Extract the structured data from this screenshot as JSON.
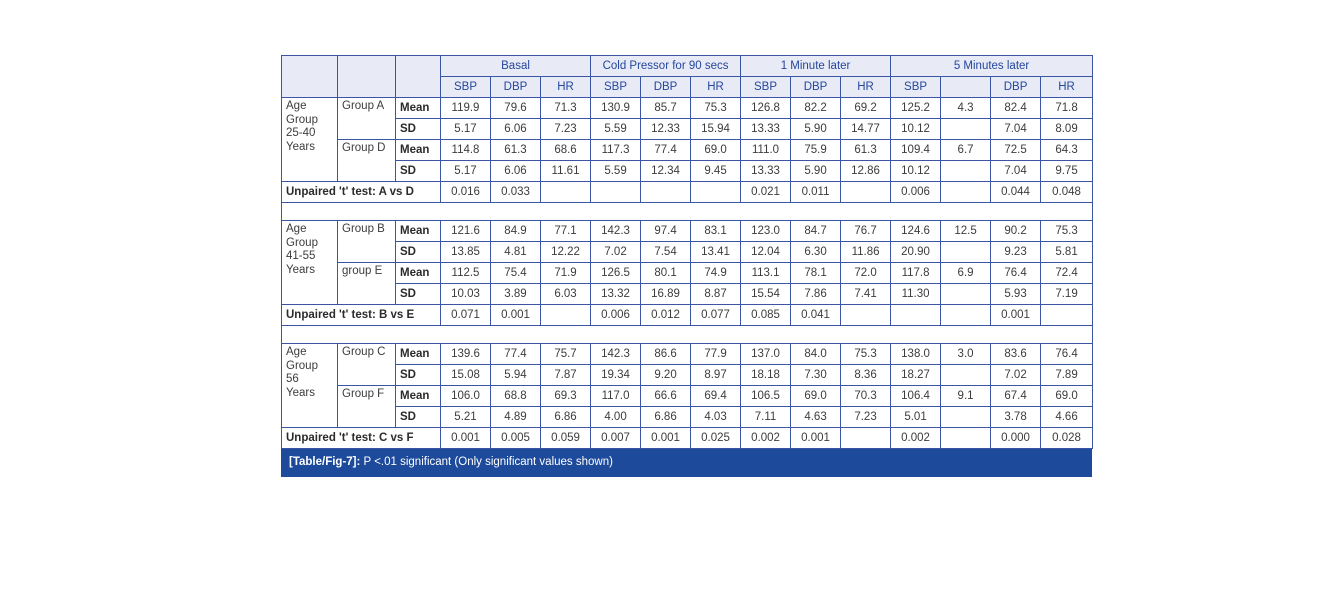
{
  "colors": {
    "header_bg": "#e8eaf6",
    "header_text": "#24479c",
    "border": "#3a55a3",
    "caption_bg": "#1d4a9b",
    "caption_text": "#ffffff",
    "data_text": "#3c3c3c"
  },
  "table": {
    "column_groups": [
      {
        "label": "Basal",
        "span": 3
      },
      {
        "label": "Cold Pressor for 90 secs",
        "span": 3
      },
      {
        "label": "1 Minute later",
        "span": 3
      },
      {
        "label": "5 Minutes later",
        "span": 4
      }
    ],
    "sub_headers": [
      "SBP",
      "DBP",
      "HR",
      "SBP",
      "DBP",
      "HR",
      "SBP",
      "DBP",
      "HR",
      "SBP",
      "",
      "DBP",
      "HR"
    ],
    "stat_labels": {
      "mean": "Mean",
      "sd": "SD"
    },
    "sections": [
      {
        "age_group": "Age\nGroup\n25-40\nYears",
        "groups": [
          {
            "name": "Group A",
            "mean": [
              "119.9",
              "79.6",
              "71.3",
              "130.9",
              "85.7",
              "75.3",
              "126.8",
              "82.2",
              "69.2",
              "125.2",
              "4.3",
              "82.4",
              "71.8"
            ],
            "sd": [
              "5.17",
              "6.06",
              "7.23",
              "5.59",
              "12.33",
              "15.94",
              "13.33",
              "5.90",
              "14.77",
              "10.12",
              "",
              "7.04",
              "8.09"
            ]
          },
          {
            "name": "Group D",
            "mean": [
              "114.8",
              "61.3",
              "68.6",
              "117.3",
              "77.4",
              "69.0",
              "111.0",
              "75.9",
              "61.3",
              "109.4",
              "6.7",
              "72.5",
              "64.3"
            ],
            "sd": [
              "5.17",
              "6.06",
              "11.61",
              "5.59",
              "12.34",
              "9.45",
              "13.33",
              "5.90",
              "12.86",
              "10.12",
              "",
              "7.04",
              "9.75"
            ]
          }
        ],
        "ttest_label": "Unpaired 't' test: A vs D",
        "ttest": [
          "0.016",
          "0.033",
          "",
          "",
          "",
          "",
          "0.021",
          "0.011",
          "",
          "0.006",
          "",
          "0.044",
          "0.048"
        ]
      },
      {
        "age_group": "Age\n Group\n41-55\nYears",
        "groups": [
          {
            "name": "Group B",
            "mean": [
              "121.6",
              "84.9",
              "77.1",
              "142.3",
              "97.4",
              "83.1",
              "123.0",
              "84.7",
              "76.7",
              "124.6",
              "12.5",
              "90.2",
              "75.3"
            ],
            "sd": [
              "13.85",
              "4.81",
              "12.22",
              "7.02",
              "7.54",
              "13.41",
              "12.04",
              "6.30",
              "11.86",
              "20.90",
              "",
              "9.23",
              "5.81"
            ]
          },
          {
            "name": "group E",
            "mean": [
              "112.5",
              "75.4",
              "71.9",
              "126.5",
              "80.1",
              "74.9",
              "113.1",
              "78.1",
              "72.0",
              "117.8",
              "6.9",
              "76.4",
              "72.4"
            ],
            "sd": [
              "10.03",
              "3.89",
              "6.03",
              "13.32",
              "16.89",
              "8.87",
              "15.54",
              "7.86",
              "7.41",
              "11.30",
              "",
              "5.93",
              "7.19"
            ]
          }
        ],
        "ttest_label": "Unpaired 't' test: B vs E",
        "ttest": [
          "0.071",
          "0.001",
          "",
          "0.006",
          "0.012",
          "0.077",
          "0.085",
          "0.041",
          "",
          "",
          "",
          "0.001",
          ""
        ]
      },
      {
        "age_group": "Age\nGroup\n56\nYears",
        "groups": [
          {
            "name": "Group C",
            "mean": [
              "139.6",
              "77.4",
              "75.7",
              "142.3",
              "86.6",
              "77.9",
              "137.0",
              "84.0",
              "75.3",
              "138.0",
              "3.0",
              "83.6",
              "76.4"
            ],
            "sd": [
              "15.08",
              "5.94",
              "7.87",
              "19.34",
              "9.20",
              "8.97",
              "18.18",
              "7.30",
              "8.36",
              "18.27",
              "",
              "7.02",
              "7.89"
            ]
          },
          {
            "name": "Group F",
            "mean": [
              "106.0",
              "68.8",
              "69.3",
              "117.0",
              "66.6",
              "69.4",
              "106.5",
              "69.0",
              "70.3",
              "106.4",
              "9.1",
              "67.4",
              "69.0"
            ],
            "sd": [
              "5.21",
              "4.89",
              "6.86",
              "4.00",
              "6.86",
              "4.03",
              "7.11",
              "4.63",
              "7.23",
              "5.01",
              "",
              "3.78",
              "4.66"
            ]
          }
        ],
        "ttest_label": "Unpaired 't' test: C vs F",
        "ttest": [
          "0.001",
          "0.005",
          "0.059",
          "0.007",
          "0.001",
          "0.025",
          "0.002",
          "0.001",
          "",
          "0.002",
          "",
          "0.000",
          "0.028"
        ]
      }
    ],
    "caption_tag": "[Table/Fig-7]:",
    "caption_text": " P <.01 significant (Only significant values shown)"
  }
}
